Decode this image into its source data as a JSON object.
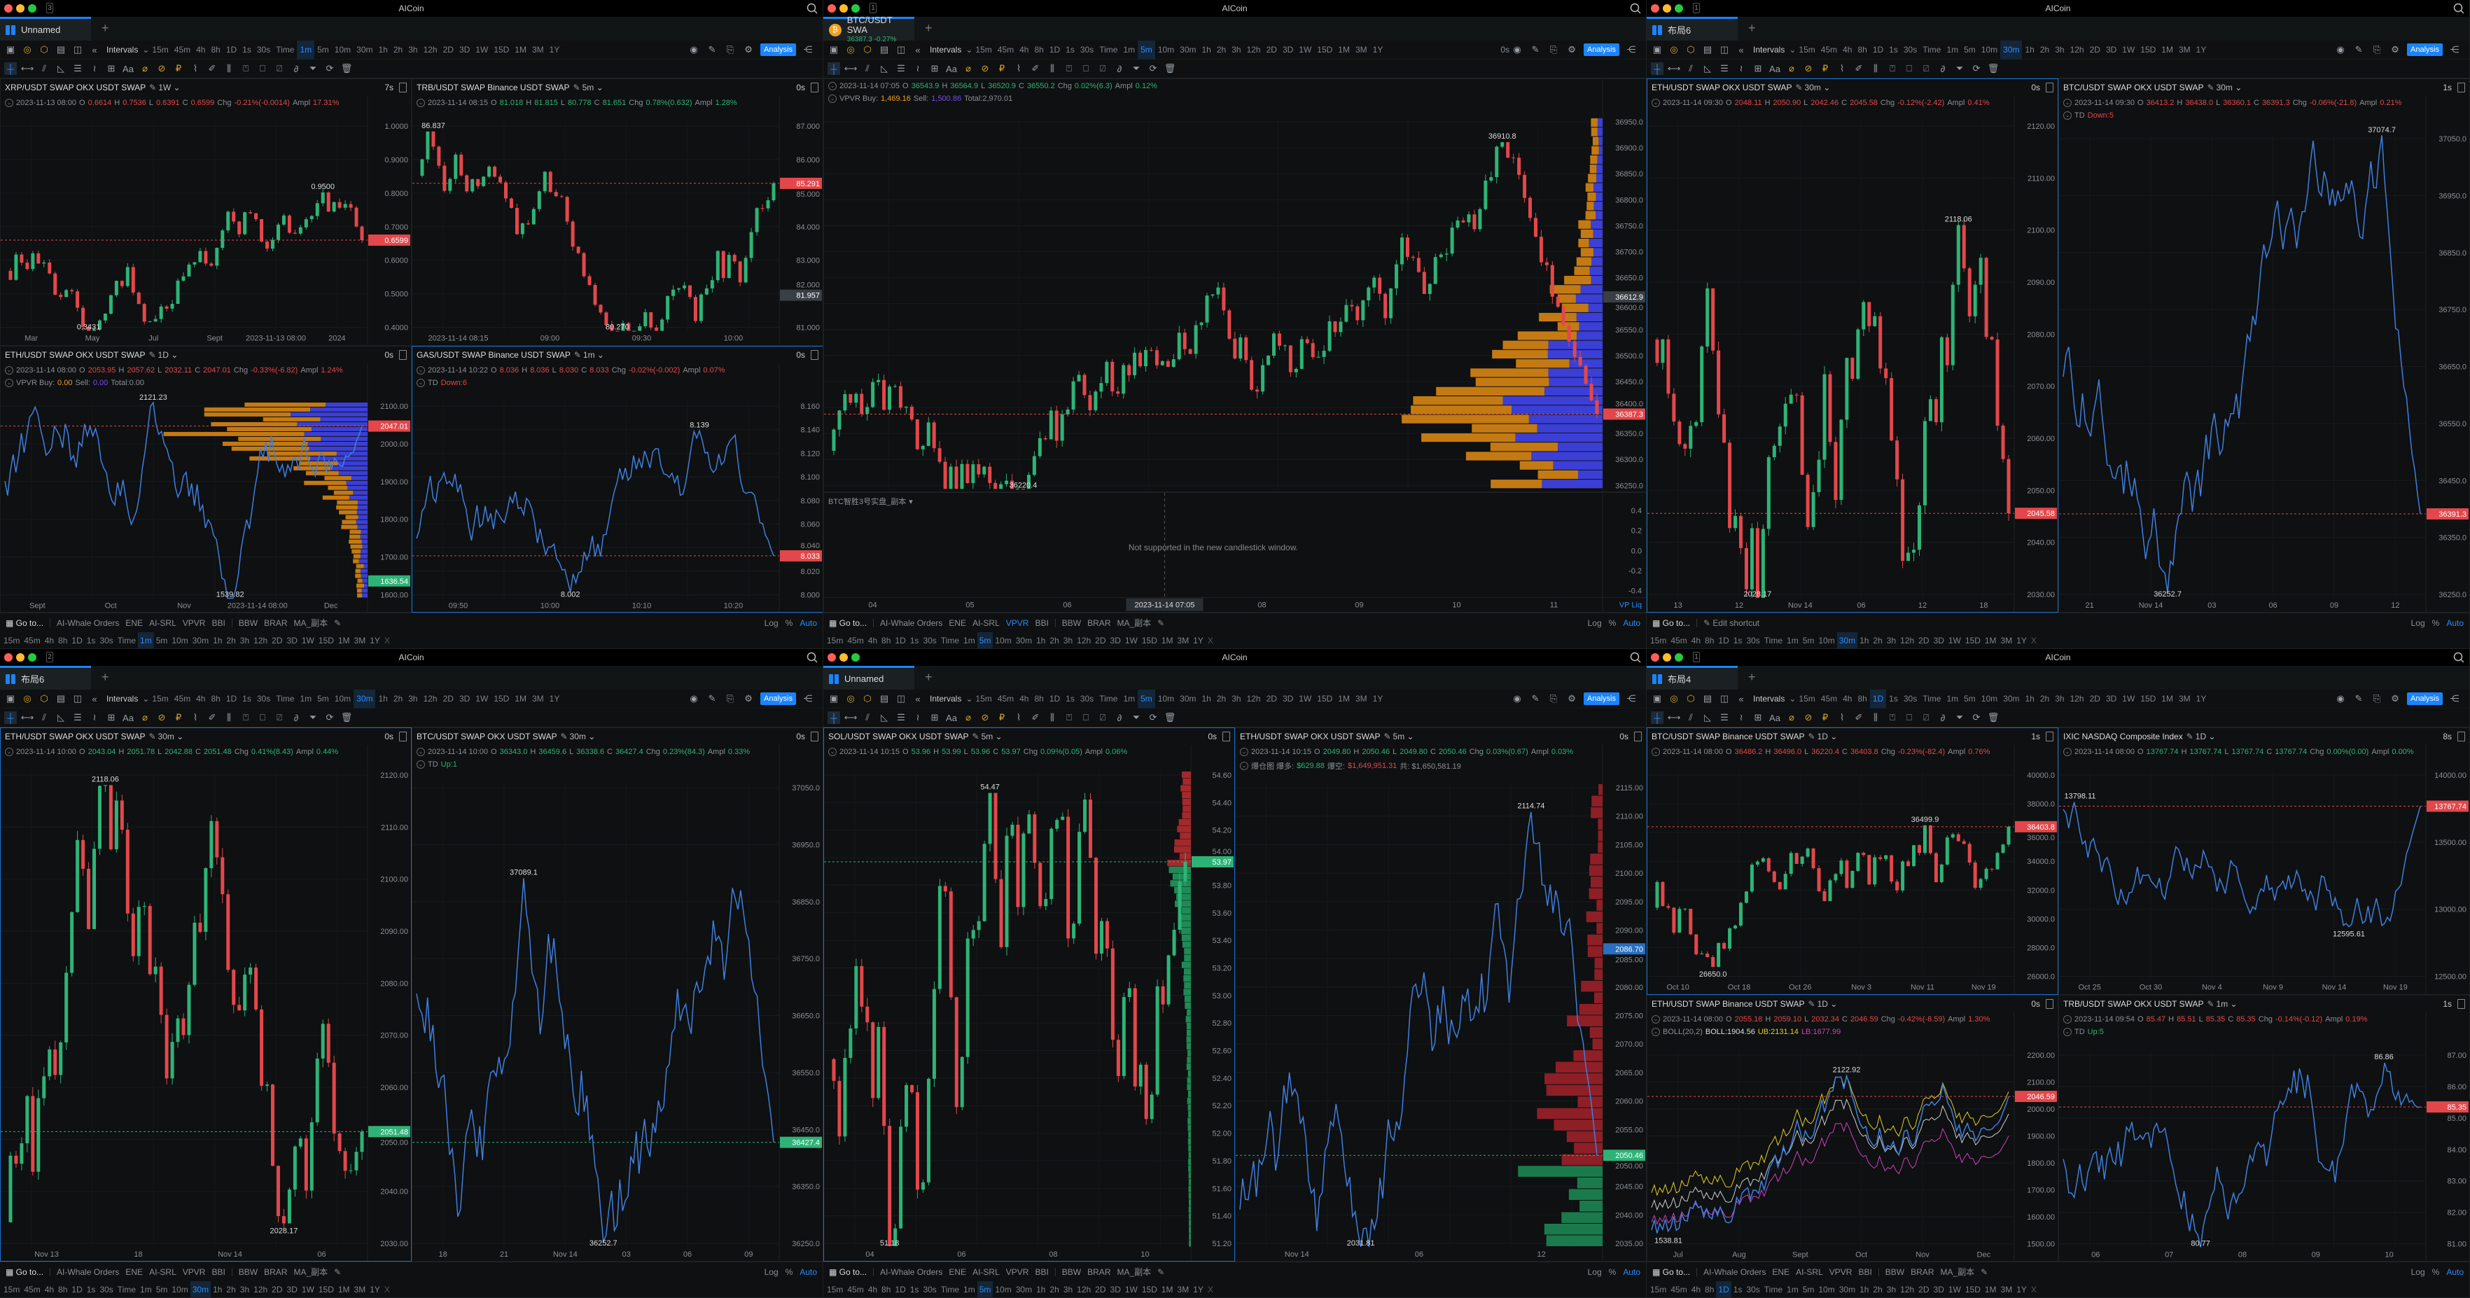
{
  "app_title": "AICoin",
  "intervals_label": "Intervals",
  "intervals": [
    "15m",
    "45m",
    "4h",
    "8h",
    "1D",
    "1s",
    "30s",
    "Time",
    "1m",
    "5m",
    "10m",
    "30m",
    "1h",
    "2h",
    "3h",
    "12h",
    "2D",
    "3D",
    "1W",
    "15D",
    "1M",
    "3M",
    "1Y"
  ],
  "analysis_label": "Analysis",
  "text_tool_label": "Aa",
  "goto_label": "Go to...",
  "edit_shortcut_label": "Edit shortcut",
  "indicators": [
    "AI-Whale Orders",
    "ENE",
    "AI-SRL",
    "VPVR",
    "BBI",
    "|",
    "BBW",
    "BRAR",
    "MA_副本"
  ],
  "scale_options": {
    "log": "Log",
    "pct": "%",
    "auto": "Auto"
  },
  "close_row_label": "X",
  "ohlc_labels": {
    "o": "O",
    "h": "H",
    "l": "L",
    "c": "C",
    "chg": "Chg",
    "ampl": "Ampl"
  },
  "colors": {
    "up": "#2eb377",
    "down": "#e3474b",
    "accent": "#1a84ff",
    "line": "#3f7fe0",
    "vp_buy": "#c47a12",
    "vp_sell": "#3b3fd6"
  },
  "windows": [
    {
      "count": "3",
      "tab": "Unnamed",
      "active_interval": "1m",
      "toolbar_timer": "",
      "bottom": "indicators",
      "active_indicator": "",
      "panels": [
        {
          "title": "XRP/USDT SWAP OKX USDT SWAP",
          "interval": "1W",
          "timer": "7s",
          "dir": "down",
          "date": "2023-11-13 08:00",
          "o": "0.6614",
          "h": "0.7536",
          "l": "0.6391",
          "c": "0.6599",
          "chg": "-0.21%(-0.0014)",
          "ampl": "17.31%",
          "extra": [],
          "type": "candle",
          "y_ticks": [
            "1.0000",
            "0.9000",
            "0.8000",
            "0.7000",
            "0.6000",
            "0.5000",
            "0.4000"
          ],
          "tag": "0.6599",
          "tag_dir": "down",
          "x_ticks": [
            "Mar",
            "May",
            "Jul",
            "Sept",
            "2023-11-13 08:00",
            "2024"
          ],
          "hi": "0.9500",
          "lo": "0.3431"
        },
        {
          "title": "TRB/USDT SWAP Binance USDT SWAP",
          "interval": "5m",
          "timer": "0s",
          "dir": "up",
          "date": "2023-11-14 08:15",
          "o": "81.018",
          "h": "81.815",
          "l": "80.778",
          "c": "81.651",
          "chg": "0.78%(0.632)",
          "ampl": "1.28%",
          "extra": [],
          "type": "candle",
          "y_ticks": [
            "87.000",
            "86.000",
            "85.000",
            "84.000",
            "83.000",
            "82.000",
            "81.000"
          ],
          "tag": "85.291",
          "tag_dir": "down",
          "tag2": "81.957",
          "x_ticks": [
            "2023-11-14 08:15",
            "09:00",
            "09:30",
            "10:00"
          ],
          "hi": "86.837",
          "lo": "80.270"
        },
        {
          "title": "ETH/USDT SWAP OKX USDT SWAP",
          "interval": "1D",
          "timer": "0s",
          "dir": "down",
          "date": "2023-11-14 08:00",
          "o": "2053.95",
          "h": "2057.62",
          "l": "2032.11",
          "c": "2047.01",
          "chg": "-0.33%(-6.82)",
          "ampl": "1.24%",
          "extra": [
            {
              "t": "VPVR Buy:",
              "c": "#8b9095"
            },
            {
              "t": "0.00",
              "c": "#f0a020"
            },
            {
              "t": "Sell:",
              "c": "#8b9095"
            },
            {
              "t": "0.00",
              "c": "#7a4cf0"
            },
            {
              "t": "Total:0.00",
              "c": "#8b9095"
            }
          ],
          "type": "line",
          "vp": "volume",
          "y_ticks": [
            "2100.00",
            "2000.00",
            "1900.00",
            "1800.00",
            "1700.00",
            "1600.00"
          ],
          "tag": "2047.01",
          "tag_dir": "down",
          "tag2": "1636.54",
          "x_ticks": [
            "Sept",
            "Oct",
            "Nov",
            "2023-11-14 08:00",
            "Dec"
          ],
          "hi": "2121.23",
          "lo": "1539.82"
        },
        {
          "title": "GAS/USDT SWAP Binance USDT SWAP",
          "interval": "1m",
          "timer": "0s",
          "dir": "down",
          "active": true,
          "date": "2023-11-14 10:22",
          "o": "8.036",
          "h": "8.036",
          "l": "8.030",
          "c": "8.033",
          "chg": "-0.02%(-0.002)",
          "ampl": "0.07%",
          "extra": [
            {
              "t": "TD",
              "c": "#8b9095"
            },
            {
              "t": "Down:6",
              "c": "#e3474b"
            }
          ],
          "type": "line",
          "y_ticks": [
            "8.160",
            "8.140",
            "8.120",
            "8.100",
            "8.080",
            "8.060",
            "8.040",
            "8.020",
            "8.000"
          ],
          "tag": "8.033",
          "tag_dir": "down",
          "x_ticks": [
            "09:50",
            "10:00",
            "10:10",
            "10:20"
          ],
          "hi": "8.139",
          "lo": "8.002"
        }
      ]
    },
    {
      "count": "1",
      "tab": "BTC/USDT SWA",
      "tab_price": "36387.3",
      "tab_chg": "-0.27%",
      "active_interval": "5m",
      "toolbar_timer": "0s",
      "bottom": "indicators",
      "active_indicator": "VPVR",
      "panels": [
        {
          "title": "",
          "interval": "",
          "timer": "",
          "dir": "up",
          "date": "2023-11-14 07:05",
          "o": "36543.9",
          "h": "36564.9",
          "l": "36520.9",
          "c": "36550.2",
          "chg": "0.02%(6.3)",
          "ampl": "0.12%",
          "extra": [
            {
              "t": "VPVR Buy:",
              "c": "#8b9095"
            },
            {
              "t": "1,469.16",
              "c": "#f0a020"
            },
            {
              "t": "Sell:",
              "c": "#8b9095"
            },
            {
              "t": "1,500.86",
              "c": "#7a4cf0"
            },
            {
              "t": "Total:2,970.01",
              "c": "#8b9095"
            }
          ],
          "type": "candle",
          "vp": "volume",
          "y_ticks": [
            "36950.0",
            "36900.0",
            "36850.0",
            "36800.0",
            "36750.0",
            "36700.0",
            "36650.0",
            "36600.0",
            "36550.0",
            "36500.0",
            "36450.0",
            "36400.0",
            "36350.0",
            "36300.0",
            "36250.0"
          ],
          "tag": "36387.3",
          "tag_dir": "down",
          "tag2": "36612.9",
          "x_ticks": [],
          "hi": "36910.8",
          "lo": "36220.4"
        }
      ],
      "subpane": {
        "name": "BTC智胜3号实盘_副本",
        "message": "Not supported in the new candlestick window.",
        "y_ticks": [
          "0.4",
          "0.2",
          "0.0",
          "-0.2",
          "-0.4"
        ],
        "x_ticks": [
          "04",
          "05",
          "06",
          "2023-11-14 07:05",
          "08",
          "09",
          "10",
          "11"
        ],
        "corner": "VP  Liq"
      }
    },
    {
      "count": "1",
      "tab": "布局6",
      "active_interval": "30m",
      "toolbar_timer": "",
      "bottom": "shortcut",
      "active_indicator": "",
      "panels": [
        {
          "title": "ETH/USDT SWAP OKX USDT SWAP",
          "interval": "30m",
          "timer": "0s",
          "dir": "down",
          "active": true,
          "date": "2023-11-14 09:30",
          "o": "2048.11",
          "h": "2050.90",
          "l": "2042.46",
          "c": "2045.58",
          "chg": "-0.12%(-2.42)",
          "ampl": "0.41%",
          "extra": [],
          "type": "candle",
          "y_ticks": [
            "2120.00",
            "2110.00",
            "2100.00",
            "2090.00",
            "2080.00",
            "2070.00",
            "2060.00",
            "2050.00",
            "2040.00",
            "2030.00"
          ],
          "tag": "2045.58",
          "tag_dir": "down",
          "x_ticks": [
            "13",
            "12",
            "Nov 14",
            "06",
            "12",
            "18"
          ],
          "hi": "2118.06",
          "lo": "2028.17"
        },
        {
          "title": "BTC/USDT SWAP OKX USDT SWAP",
          "interval": "30m",
          "timer": "1s",
          "dir": "down",
          "date": "2023-11-14 09:30",
          "o": "36413.2",
          "h": "36438.0",
          "l": "36360.1",
          "c": "36391.3",
          "chg": "-0.06%(-21.8)",
          "ampl": "0.21%",
          "extra": [
            {
              "t": "TD",
              "c": "#8b9095"
            },
            {
              "t": "Down:5",
              "c": "#e3474b"
            }
          ],
          "type": "line",
          "y_ticks": [
            "37050.0",
            "36950.0",
            "36850.0",
            "36750.0",
            "36650.0",
            "36550.0",
            "36450.0",
            "36350.0",
            "36250.0"
          ],
          "tag": "36391.3",
          "tag_dir": "down",
          "x_ticks": [
            "21",
            "Nov 14",
            "03",
            "06",
            "09",
            "12"
          ],
          "hi": "37074.7",
          "lo": "36252.7"
        }
      ]
    },
    {
      "count": "2",
      "tab": "布局6",
      "active_interval": "30m",
      "toolbar_timer": "",
      "bottom": "indicators",
      "active_indicator": "",
      "panels": [
        {
          "title": "ETH/USDT SWAP OKX USDT SWAP",
          "interval": "30m",
          "timer": "0s",
          "dir": "up",
          "active": true,
          "date": "2023-11-14 10:00",
          "o": "2043.04",
          "h": "2051.78",
          "l": "2042.88",
          "c": "2051.48",
          "chg": "0.41%(8.43)",
          "ampl": "0.44%",
          "extra": [],
          "type": "candle",
          "y_ticks": [
            "2120.00",
            "2110.00",
            "2100.00",
            "2090.00",
            "2080.00",
            "2070.00",
            "2060.00",
            "2050.00",
            "2040.00",
            "2030.00"
          ],
          "tag": "2051.48",
          "tag_dir": "up",
          "x_ticks": [
            "Nov 13",
            "18",
            "Nov 14",
            "06"
          ],
          "hi": "2118.06",
          "lo": "2028.17"
        },
        {
          "title": "BTC/USDT SWAP OKX USDT SWAP",
          "interval": "30m",
          "timer": "0s",
          "dir": "up",
          "date": "2023-11-14 10:00",
          "o": "36343.0",
          "h": "36459.6",
          "l": "36338.6",
          "c": "36427.4",
          "chg": "0.23%(84.3)",
          "ampl": "0.33%",
          "extra": [
            {
              "t": "TD",
              "c": "#8b9095"
            },
            {
              "t": "Up:1",
              "c": "#2eb377"
            }
          ],
          "type": "line",
          "y_ticks": [
            "37050.0",
            "36950.0",
            "36850.0",
            "36750.0",
            "36650.0",
            "36550.0",
            "36450.0",
            "36350.0",
            "36250.0"
          ],
          "tag": "36427.4",
          "tag_dir": "up",
          "x_ticks": [
            "18",
            "21",
            "Nov 14",
            "03",
            "06",
            "09"
          ],
          "hi": "37089.1",
          "lo": "36252.7"
        }
      ]
    },
    {
      "count": "",
      "tab": "Unnamed",
      "active_interval": "5m",
      "toolbar_timer": "",
      "bottom": "indicators",
      "active_indicator": "",
      "panels": [
        {
          "title": "SOL/USDT SWAP OKX USDT SWAP",
          "interval": "5m",
          "timer": "0s",
          "dir": "up",
          "active": true,
          "date": "2023-11-14 10:15",
          "o": "53.96",
          "h": "53.99",
          "l": "53.96",
          "c": "53.97",
          "chg": "0.09%(0.05)",
          "ampl": "0.06%",
          "extra": [],
          "type": "candle",
          "vp": "sol",
          "y_ticks": [
            "54.60",
            "54.40",
            "54.20",
            "54.00",
            "53.80",
            "53.60",
            "53.40",
            "53.20",
            "53.00",
            "52.80",
            "52.60",
            "52.40",
            "52.20",
            "52.00",
            "51.80",
            "51.60",
            "51.40",
            "51.20"
          ],
          "tag": "53.97",
          "tag_dir": "up",
          "x_ticks": [
            "04",
            "06",
            "08",
            "10"
          ],
          "hi": "54.47",
          "lo": "51.18"
        },
        {
          "title": "ETH/USDT SWAP OKX USDT SWAP",
          "interval": "5m",
          "timer": "0s",
          "dir": "up",
          "date": "2023-11-14 10:15",
          "o": "2049.80",
          "h": "2050.46",
          "l": "2049.80",
          "c": "2050.46",
          "chg": "0.03%(0.67)",
          "ampl": "0.03%",
          "extra": [
            {
              "t": "爆仓图 爆多:",
              "c": "#8b9095"
            },
            {
              "t": "$629.88",
              "c": "#2eb377"
            },
            {
              "t": "爆空:",
              "c": "#8b9095"
            },
            {
              "t": "$1,649,951.31",
              "c": "#e3474b"
            },
            {
              "t": "共: $1,650,581.19",
              "c": "#8b9095"
            }
          ],
          "type": "line",
          "vp": "liq",
          "y_ticks": [
            "2115.00",
            "2110.00",
            "2105.00",
            "2100.00",
            "2095.00",
            "2090.00",
            "2085.00",
            "2080.00",
            "2075.00",
            "2070.00",
            "2065.00",
            "2060.00",
            "2055.00",
            "2050.00",
            "2045.00",
            "2040.00",
            "2035.00"
          ],
          "tag": "2050.46",
          "tag_dir": "up",
          "tag2": "2086.70",
          "x_ticks": [
            "Nov 14",
            "06",
            "12"
          ],
          "hi": "2114.74",
          "lo": "2031.81"
        }
      ]
    },
    {
      "count": "1",
      "tab": "布局4",
      "active_interval": "1D",
      "toolbar_timer": "",
      "bottom": "indicators",
      "active_indicator": "",
      "panels": [
        {
          "title": "BTC/USDT SWAP Binance USDT SWAP",
          "interval": "1D",
          "timer": "1s",
          "dir": "down",
          "active": true,
          "date": "2023-11-14 08:00",
          "o": "36486.2",
          "h": "36496.0",
          "l": "36220.4",
          "c": "36403.8",
          "chg": "-0.23%(-82.4)",
          "ampl": "0.76%",
          "extra": [],
          "type": "candle",
          "y_ticks": [
            "40000.0",
            "38000.0",
            "36000.0",
            "34000.0",
            "32000.0",
            "30000.0",
            "28000.0",
            "26000.0"
          ],
          "tag": "36403.8",
          "tag_dir": "down",
          "x_ticks": [
            "Oct 10",
            "Oct 18",
            "Oct 26",
            "Nov 3",
            "Nov 11",
            "Nov 19"
          ],
          "hi": "36499.9",
          "lo": "26650.0"
        },
        {
          "title": "IXIC NASDAQ Composite Index",
          "interval": "1D",
          "timer": "8s",
          "dir": "up",
          "date": "2023-11-14 08:00",
          "o": "13767.74",
          "h": "13767.74",
          "l": "13767.74",
          "c": "13767.74",
          "chg": "0.00%(0.00)",
          "ampl": "0.00%",
          "extra": [],
          "type": "line",
          "y_ticks": [
            "14000.00",
            "13500.00",
            "13000.00",
            "12500.00"
          ],
          "tag": "13767.74",
          "tag_dir": "down",
          "x_ticks": [
            "Oct 25",
            "Oct 30",
            "Nov 4",
            "Nov 9",
            "Nov 14",
            "Nov 19"
          ],
          "hi": "13798.11",
          "lo": "12595.61"
        },
        {
          "title": "ETH/USDT SWAP Binance USDT SWAP",
          "interval": "1D",
          "timer": "0s",
          "dir": "down",
          "date": "2023-11-14 08:00",
          "o": "2055.18",
          "h": "2059.10",
          "l": "2032.34",
          "c": "2046.59",
          "chg": "-0.42%(-8.59)",
          "ampl": "1.30%",
          "extra": [
            {
              "t": "BOLL(20,2)",
              "c": "#8b9095"
            },
            {
              "t": "BOLL:1904.56",
              "c": "#dddddd"
            },
            {
              "t": "UB:2131.14",
              "c": "#e0d020"
            },
            {
              "t": "LB:1677.99",
              "c": "#d040c0"
            }
          ],
          "type": "line",
          "boll": true,
          "y_ticks": [
            "2200.00",
            "2100.00",
            "2000.00",
            "1900.00",
            "1800.00",
            "1700.00",
            "1600.00",
            "1500.00"
          ],
          "tag": "2046.59",
          "tag_dir": "down",
          "x_ticks": [
            "Jul",
            "Aug",
            "Sept",
            "Oct",
            "Nov",
            "Dec"
          ],
          "hi": "2122.92",
          "lo": "1538.81"
        },
        {
          "title": "TRB/USDT SWAP OKX USDT SWAP",
          "interval": "1m",
          "timer": "1s",
          "dir": "down",
          "date": "2023-11-14 09:54",
          "o": "85.47",
          "h": "85.51",
          "l": "85.35",
          "c": "85.35",
          "chg": "-0.14%(-0.12)",
          "ampl": "0.19%",
          "extra": [
            {
              "t": "TD",
              "c": "#8b9095"
            },
            {
              "t": "Up:5",
              "c": "#2eb377"
            }
          ],
          "type": "line",
          "y_ticks": [
            "87.00",
            "86.00",
            "85.00",
            "84.00",
            "83.00",
            "82.00",
            "81.00"
          ],
          "tag": "85.35",
          "tag_dir": "down",
          "x_ticks": [
            "06",
            "07",
            "08",
            "09",
            "10"
          ],
          "hi": "86.86",
          "lo": "80.77"
        }
      ]
    }
  ]
}
